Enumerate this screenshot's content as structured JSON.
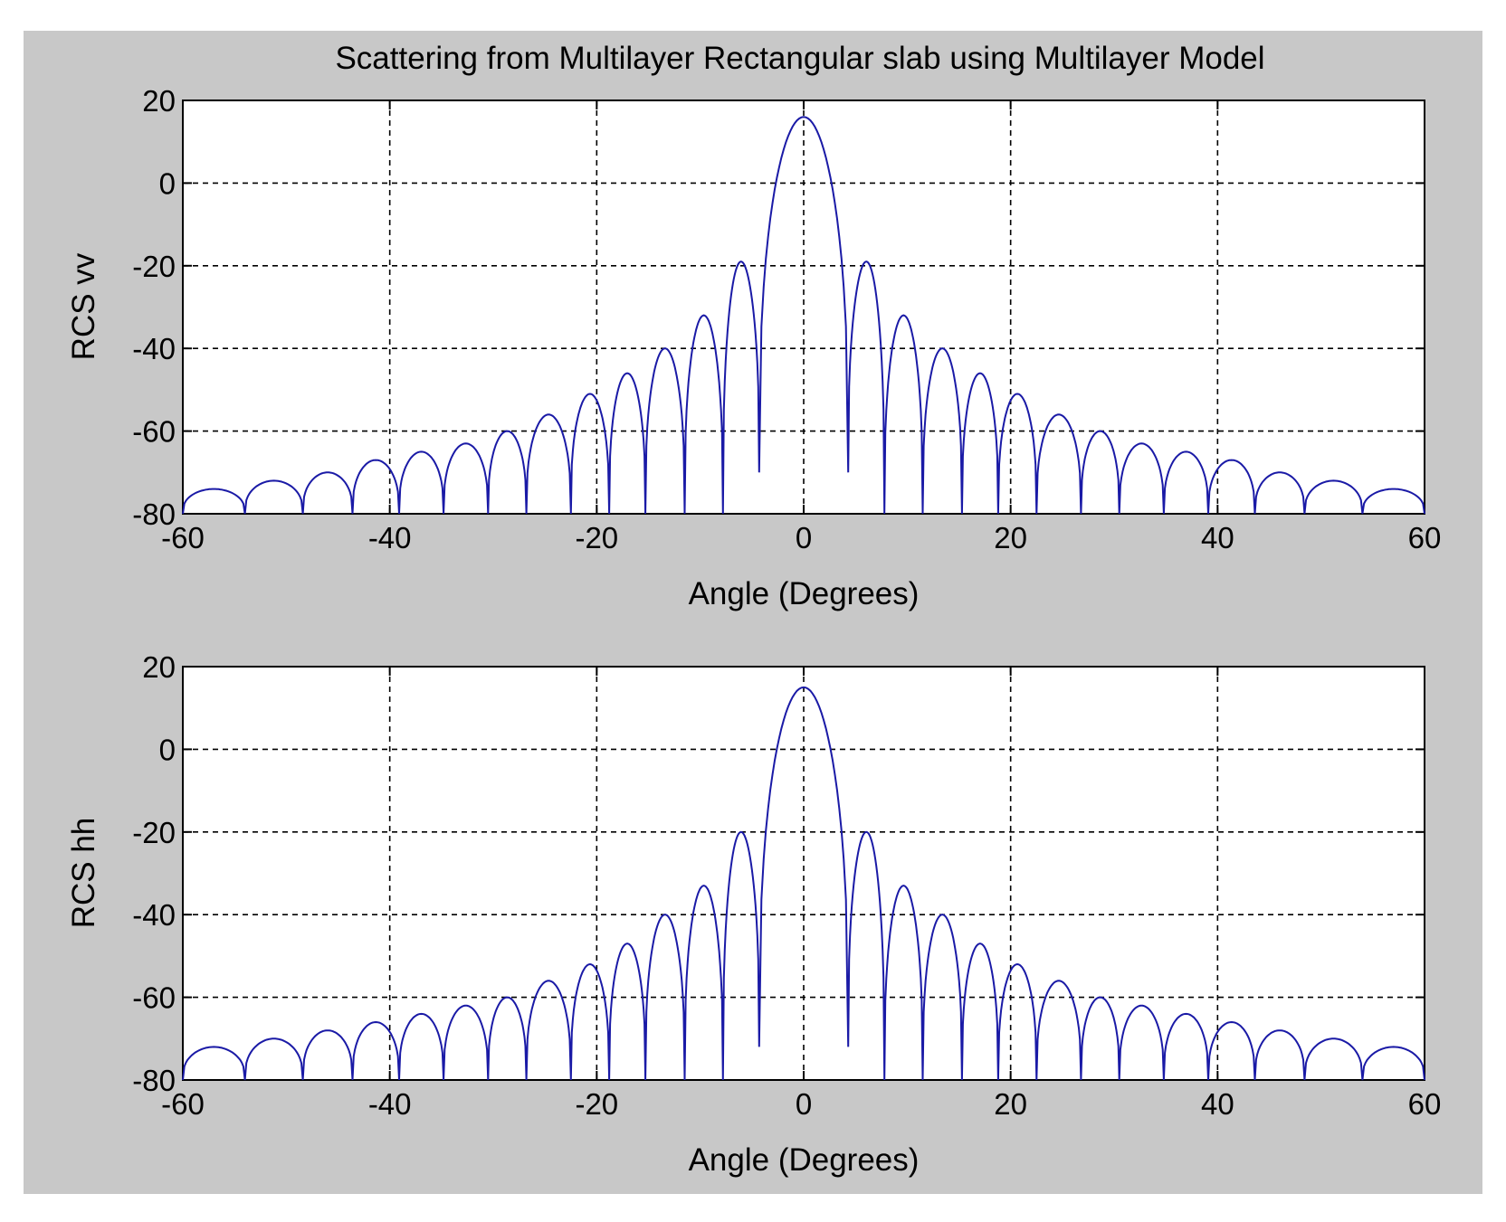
{
  "chart_data": [
    {
      "type": "line",
      "title": "Scattering from Multilayer Rectangular slab using Multilayer Model",
      "xlabel": "Angle (Degrees)",
      "ylabel": "RCS vv",
      "xlim": [
        -60,
        60
      ],
      "ylim": [
        -80,
        20
      ],
      "xticks": [
        "-60",
        "-40",
        "-20",
        "0",
        "20",
        "40",
        "60"
      ],
      "yticks": [
        "20",
        "0",
        "-20",
        "-40",
        "-60",
        "-80"
      ],
      "grid": true,
      "line_color": "#1a1aa6",
      "series": [
        {
          "peaks": [
            [
              0,
              16
            ],
            [
              5.8,
              -19
            ],
            [
              9.6,
              -32
            ],
            [
              13.4,
              -40
            ],
            [
              16.9,
              -46
            ],
            [
              20.5,
              -51
            ],
            [
              24.6,
              -56
            ],
            [
              28.4,
              -60
            ],
            [
              32.7,
              -63
            ],
            [
              36.9,
              -65
            ],
            [
              41.2,
              -67
            ],
            [
              45.9,
              -70
            ],
            [
              51.0,
              -72
            ],
            [
              57.3,
              -74
            ]
          ],
          "nulls": [
            [
              4.3,
              -70
            ],
            [
              7.8,
              -80
            ],
            [
              11.5,
              -80
            ],
            [
              15.3,
              -80
            ],
            [
              18.8,
              -80
            ],
            [
              22.5,
              -80
            ],
            [
              26.8,
              -80
            ],
            [
              30.5,
              -80
            ],
            [
              34.8,
              -80
            ],
            [
              39.1,
              -80
            ],
            [
              43.6,
              -80
            ],
            [
              48.4,
              -80
            ],
            [
              54.0,
              -80
            ]
          ]
        }
      ]
    },
    {
      "type": "line",
      "title": "",
      "xlabel": "Angle (Degrees)",
      "ylabel": "RCS hh",
      "xlim": [
        -60,
        60
      ],
      "ylim": [
        -80,
        20
      ],
      "xticks": [
        "-60",
        "-40",
        "-20",
        "0",
        "20",
        "40",
        "60"
      ],
      "yticks": [
        "20",
        "0",
        "-20",
        "-40",
        "-60",
        "-80"
      ],
      "grid": true,
      "line_color": "#1a1aa6",
      "series": [
        {
          "peaks": [
            [
              0,
              15
            ],
            [
              5.8,
              -20
            ],
            [
              9.6,
              -33
            ],
            [
              13.4,
              -40
            ],
            [
              16.9,
              -47
            ],
            [
              20.5,
              -52
            ],
            [
              24.6,
              -56
            ],
            [
              28.4,
              -60
            ],
            [
              32.7,
              -62
            ],
            [
              36.9,
              -64
            ],
            [
              41.2,
              -66
            ],
            [
              45.9,
              -68
            ],
            [
              51.0,
              -70
            ],
            [
              57.3,
              -72
            ]
          ],
          "nulls": [
            [
              4.3,
              -72
            ],
            [
              7.8,
              -80
            ],
            [
              11.5,
              -80
            ],
            [
              15.3,
              -80
            ],
            [
              18.8,
              -80
            ],
            [
              22.5,
              -80
            ],
            [
              26.8,
              -80
            ],
            [
              30.5,
              -80
            ],
            [
              34.8,
              -80
            ],
            [
              39.1,
              -80
            ],
            [
              43.6,
              -80
            ],
            [
              48.4,
              -80
            ],
            [
              54.0,
              -80
            ]
          ]
        }
      ]
    }
  ]
}
